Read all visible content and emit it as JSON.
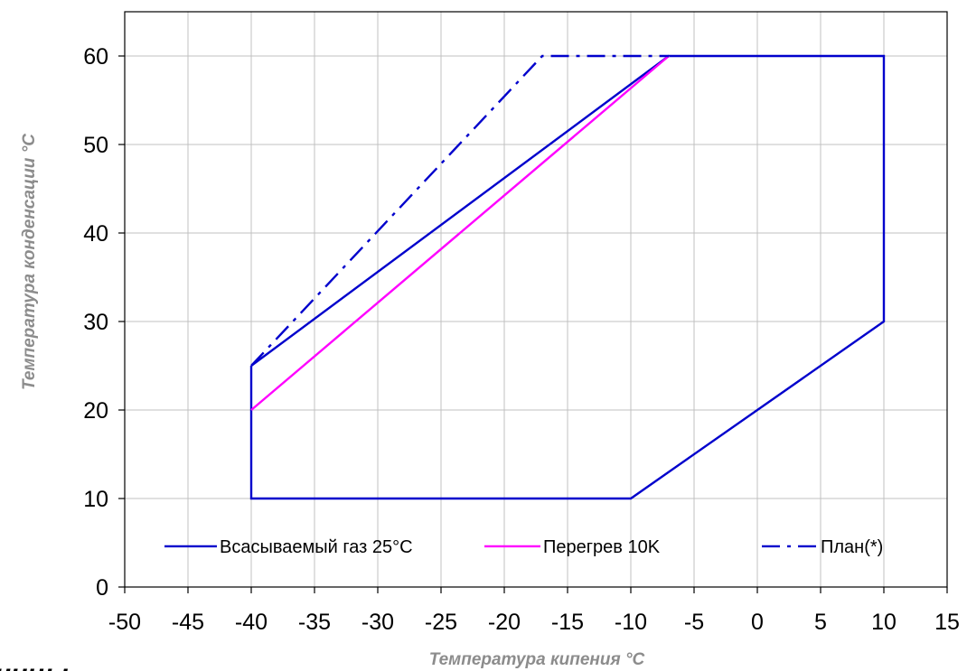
{
  "page": {
    "clipped_text": "ницы"
  },
  "colors": {
    "series_envelope": "#0000cc",
    "series_superheat": "#ff00ff",
    "series_plan": "#0000cc",
    "grid": "#c0c0c0",
    "axis_title": "#8c8c8c",
    "frame": "#000000"
  },
  "chart_data": {
    "type": "line",
    "title": "",
    "xlabel": "Температура кипения °C",
    "ylabel": "Температура конденсации °C",
    "xlim": [
      -50,
      15
    ],
    "ylim": [
      0,
      65
    ],
    "xticks": [
      -50,
      -45,
      -40,
      -35,
      -30,
      -25,
      -20,
      -15,
      -10,
      -5,
      0,
      5,
      10,
      15
    ],
    "yticks": [
      0,
      10,
      20,
      30,
      40,
      50,
      60
    ],
    "grid": true,
    "legend_position": "bottom",
    "series": [
      {
        "name": "Всасываемый газ 25°C",
        "color": "#0000cc",
        "style": "solid",
        "x": [
          -40,
          -40,
          -10,
          10,
          10,
          -7,
          -40
        ],
        "y": [
          25,
          10,
          10,
          30,
          60,
          60,
          25
        ]
      },
      {
        "name": "Перегрев 10K",
        "color": "#ff00ff",
        "style": "solid",
        "x": [
          -40,
          -7
        ],
        "y": [
          20,
          60
        ]
      },
      {
        "name": "План(*)",
        "color": "#0000cc",
        "style": "dashdot",
        "x": [
          -40,
          -17,
          -7
        ],
        "y": [
          25,
          60,
          60
        ]
      }
    ]
  }
}
